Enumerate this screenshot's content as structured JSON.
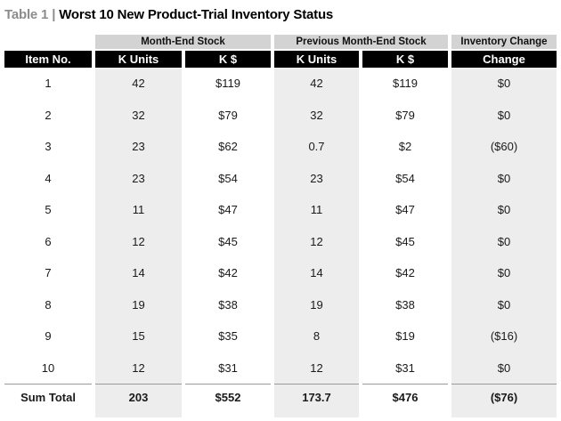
{
  "title": {
    "prefix": "Table 1",
    "separator": "|",
    "main": "Worst 10 New Product-Trial Inventory Status"
  },
  "chart_data": {
    "type": "table",
    "title": "Table 1 | Worst 10 New Product-Trial Inventory Status",
    "group_headers": [
      "Month-End Stock",
      "Previous Month-End Stock",
      "Inventory Change"
    ],
    "column_headers": [
      "Item No.",
      "K Units",
      "K $",
      "K Units",
      "K $",
      "Change"
    ],
    "rows": [
      [
        "1",
        "42",
        "$119",
        "42",
        "$119",
        "$0"
      ],
      [
        "2",
        "32",
        "$79",
        "32",
        "$79",
        "$0"
      ],
      [
        "3",
        "23",
        "$62",
        "0.7",
        "$2",
        "($60)"
      ],
      [
        "4",
        "23",
        "$54",
        "23",
        "$54",
        "$0"
      ],
      [
        "5",
        "11",
        "$47",
        "11",
        "$47",
        "$0"
      ],
      [
        "6",
        "12",
        "$45",
        "12",
        "$45",
        "$0"
      ],
      [
        "7",
        "14",
        "$42",
        "14",
        "$42",
        "$0"
      ],
      [
        "8",
        "19",
        "$38",
        "19",
        "$38",
        "$0"
      ],
      [
        "9",
        "15",
        "$35",
        "8",
        "$19",
        "($16)"
      ],
      [
        "10",
        "12",
        "$31",
        "12",
        "$31",
        "$0"
      ]
    ],
    "total_row": [
      "Sum Total",
      "203",
      "$552",
      "173.7",
      "$476",
      "($76)"
    ]
  },
  "colors": {
    "header_bg": "#000000",
    "header_text": "#ffffff",
    "group_header_bg": "#d3d3d3",
    "column_shade_bg": "#ededed",
    "title_prefix_color": "#8c8c8c",
    "rule_color": "#999999",
    "body_text": "#1a1a1a"
  }
}
